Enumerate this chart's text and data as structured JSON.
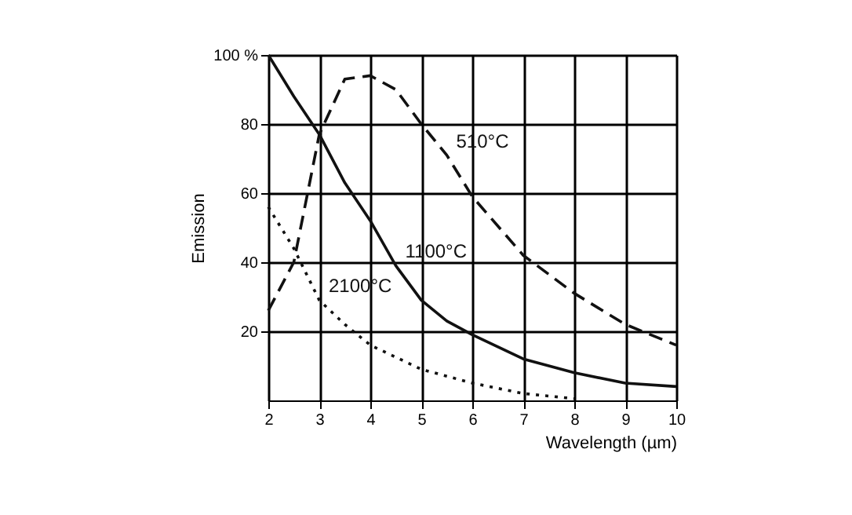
{
  "chart_data": {
    "type": "line",
    "xlabel": "Wavelength (µm)",
    "ylabel": "Emission",
    "xlim": [
      2,
      10
    ],
    "xticks": [
      2,
      3,
      4,
      5,
      6,
      7,
      8,
      9,
      10
    ],
    "ylim": [
      0,
      100
    ],
    "yticks": [
      20,
      40,
      60,
      80,
      {
        "value": 100,
        "label": "100 %"
      }
    ],
    "grid": true,
    "legend": false,
    "marker": "none",
    "series": [
      {
        "name": "510°C",
        "color": "#111111",
        "line_style": "dashed",
        "x": [
          2,
          2.5,
          3,
          3.5,
          4,
          4.5,
          5,
          5.5,
          6,
          7,
          8,
          9,
          10
        ],
        "values": [
          26,
          40,
          77,
          93,
          94,
          90,
          80,
          71,
          59,
          42,
          31,
          22,
          16
        ]
      },
      {
        "name": "1100°C",
        "color": "#111111",
        "line_style": "solid",
        "x": [
          2,
          2.5,
          3,
          3.5,
          4,
          4.5,
          5,
          5.5,
          6,
          7,
          8,
          9,
          10
        ],
        "values": [
          100,
          88,
          77,
          63,
          52,
          39,
          29,
          23,
          19,
          12,
          8,
          5,
          4
        ]
      },
      {
        "name": "2100°C",
        "color": "#111111",
        "line_style": "dotted",
        "x": [
          2,
          2.5,
          3,
          3.5,
          4,
          5,
          6,
          7,
          8
        ],
        "values": [
          56,
          44,
          29,
          22,
          16,
          9,
          5,
          2,
          0.5
        ]
      }
    ]
  }
}
